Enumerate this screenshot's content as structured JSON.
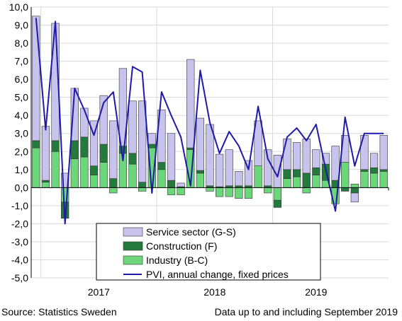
{
  "chart_data": {
    "type": "bar",
    "subtype": "stacked bar with line overlay",
    "ylim": [
      -5,
      10
    ],
    "yticks": [
      "10,0",
      "9,0",
      "8,0",
      "7,0",
      "6,0",
      "5,0",
      "4,0",
      "3,0",
      "2,0",
      "1,0",
      "0,0",
      "-1,0",
      "-2,0",
      "-3,0",
      "-4,0",
      "-5,0"
    ],
    "year_labels": [
      "2017",
      "2018",
      "2019"
    ],
    "grid": "horizontal and vertical year separators",
    "legend_position": "bottom-center",
    "colors": {
      "service": "#c8c3ec",
      "construction": "#237a3c",
      "industry": "#6cd67a",
      "pvi": "#1f1aa8",
      "grid": "#d9d9d9",
      "edge": "#333333"
    },
    "series": [
      {
        "name": "Service sector (G-S)",
        "key": "service",
        "values": [
          6.9,
          3.0,
          6.5,
          0.8,
          2.9,
          1.6,
          2.5,
          2.7,
          3.2,
          4.3,
          2.9,
          4.5,
          0.6,
          2.9,
          2.6,
          0.2,
          4.9,
          2.9,
          3.4,
          1.8,
          2.0,
          0.8,
          1.4,
          2.5,
          2.0,
          1.8,
          1.7,
          1.5,
          1.9,
          1.0,
          0.6,
          1.9,
          1.5,
          -0.5,
          1.9,
          0.8,
          1.9
        ]
      },
      {
        "name": "Construction (F)",
        "key": "construction",
        "values": [
          0.4,
          0.1,
          0.6,
          -0.9,
          1.0,
          1.1,
          0.5,
          1.0,
          0.5,
          0.4,
          0.6,
          0.3,
          0.2,
          0.4,
          0.4,
          0.05,
          0.1,
          0.15,
          0.1,
          0.05,
          0.1,
          0.1,
          0.1,
          0.0,
          0.1,
          -0.4,
          0.5,
          0.4,
          0.8,
          0.4,
          0.9,
          0.4,
          -0.2,
          -0.3,
          0.1,
          0.3,
          0.1
        ]
      },
      {
        "name": "Industry (B-C)",
        "key": "industry",
        "values": [
          2.2,
          0.3,
          2.0,
          -0.8,
          1.6,
          1.7,
          0.7,
          1.4,
          -0.3,
          1.9,
          1.3,
          -0.2,
          2.2,
          1.0,
          -0.4,
          -0.4,
          2.1,
          0.8,
          -0.2,
          -0.5,
          -0.5,
          -0.6,
          -0.6,
          1.2,
          -0.3,
          -0.7,
          0.5,
          0.6,
          -0.3,
          0.7,
          0.4,
          -0.9,
          1.4,
          0.2,
          0.9,
          0.8,
          0.9
        ]
      },
      {
        "name": "PVI, annual change, fixed prices",
        "key": "pvi",
        "type": "line",
        "values": [
          9.4,
          3.2,
          9.2,
          -2.0,
          5.5,
          4.3,
          2.9,
          4.7,
          5.3,
          1.5,
          6.7,
          6.4,
          -0.3,
          5.3,
          4.0,
          2.8,
          0.1,
          6.5,
          3.6,
          1.9,
          3.1,
          2.3,
          1.0,
          4.5,
          1.6,
          0.6,
          2.8,
          3.3,
          2.6,
          3.5,
          1.0,
          -1.3,
          3.9,
          1.2,
          3.0,
          3.0,
          3.0
        ]
      }
    ]
  },
  "footer": {
    "source": "Source: Statistics Sweden",
    "note": "Data up to and including September 2019"
  }
}
